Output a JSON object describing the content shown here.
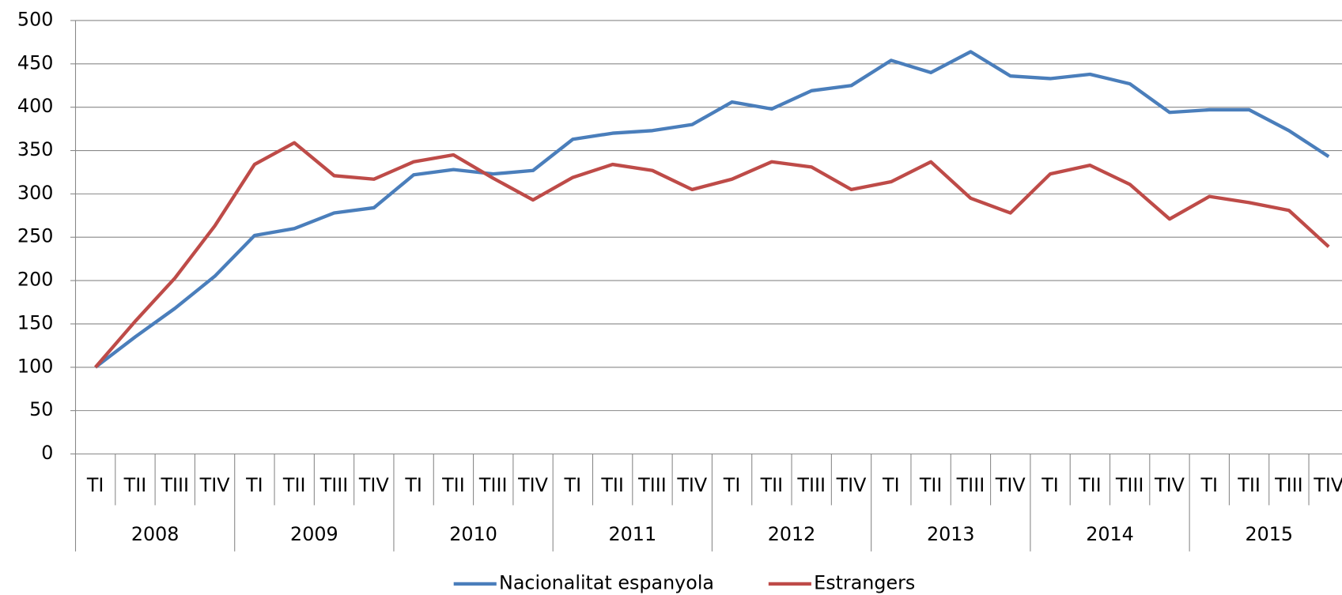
{
  "chart_data": {
    "type": "line",
    "categories": [
      "TI",
      "TII",
      "TIII",
      "TIV",
      "TI",
      "TII",
      "TIII",
      "TIV",
      "TI",
      "TII",
      "TIII",
      "TIV",
      "TI",
      "TII",
      "TIII",
      "TIV",
      "TI",
      "TII",
      "TIII",
      "TIV",
      "TI",
      "TII",
      "TIII",
      "TIV",
      "TI",
      "TII",
      "TIII",
      "TIV",
      "TI",
      "TII",
      "TIII",
      "TIV"
    ],
    "years": [
      "2008",
      "2009",
      "2010",
      "2011",
      "2012",
      "2013",
      "2014",
      "2015"
    ],
    "series": [
      {
        "name": "Nacionalitat espanyola",
        "color": "#4a7ebb",
        "values": [
          100,
          135,
          168,
          205,
          252,
          260,
          278,
          284,
          322,
          328,
          323,
          327,
          363,
          370,
          373,
          380,
          406,
          398,
          419,
          425,
          454,
          440,
          464,
          436,
          433,
          438,
          427,
          394,
          397,
          397,
          373,
          343
        ]
      },
      {
        "name": "Estrangers",
        "color": "#be4b48",
        "values": [
          100,
          153,
          203,
          263,
          334,
          359,
          321,
          317,
          337,
          345,
          318,
          293,
          319,
          334,
          327,
          305,
          317,
          337,
          331,
          305,
          314,
          337,
          295,
          278,
          323,
          333,
          311,
          271,
          297,
          290,
          281,
          239
        ]
      }
    ],
    "ylim": [
      0,
      500
    ],
    "yticks": [
      0,
      50,
      100,
      150,
      200,
      250,
      300,
      350,
      400,
      450,
      500
    ],
    "grid": true,
    "legend": "bottom"
  }
}
